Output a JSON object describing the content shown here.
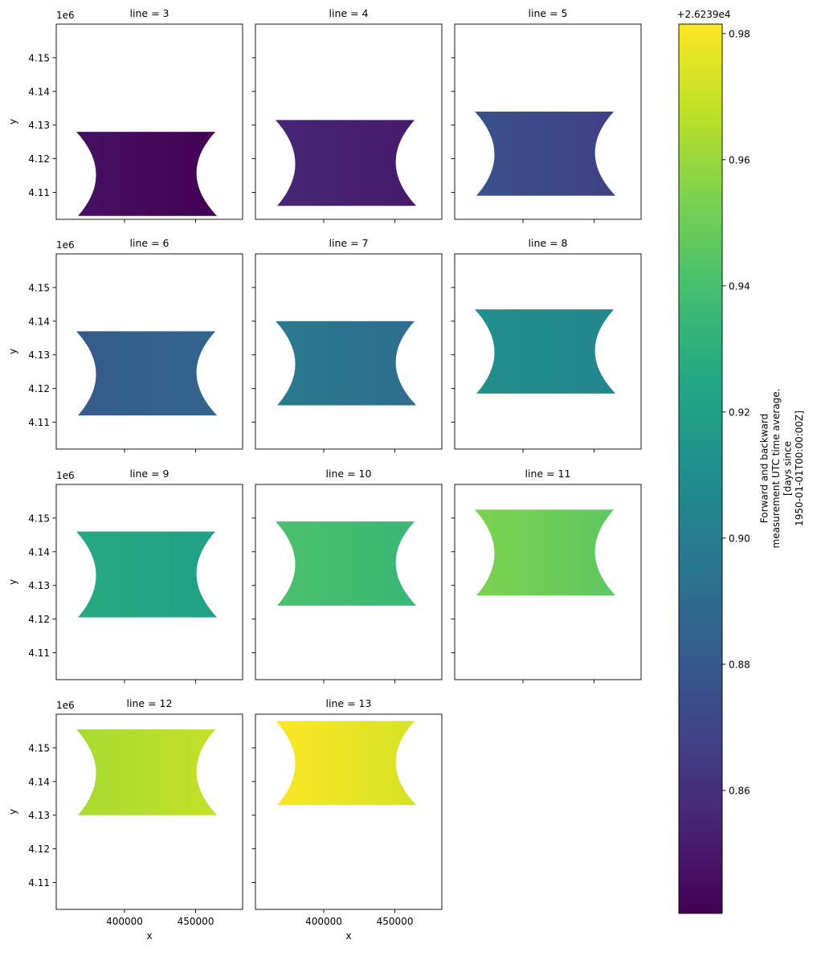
{
  "chart_data": {
    "type": "heatmap",
    "facet_var": "line",
    "panels": [
      {
        "line": 3,
        "title": "line = 3",
        "y_range": [
          4103000,
          4128000
        ],
        "value_left": 0.847,
        "value_right": 0.841
      },
      {
        "line": 4,
        "title": "line = 4",
        "y_range": [
          4106000,
          4131500
        ],
        "value_left": 0.856,
        "value_right": 0.851
      },
      {
        "line": 5,
        "title": "line = 5",
        "y_range": [
          4109000,
          4134000
        ],
        "value_left": 0.876,
        "value_right": 0.868
      },
      {
        "line": 6,
        "title": "line = 6",
        "y_range": [
          4112000,
          4137000
        ],
        "value_left": 0.881,
        "value_right": 0.886
      },
      {
        "line": 7,
        "title": "line = 7",
        "y_range": [
          4115000,
          4140000
        ],
        "value_left": 0.898,
        "value_right": 0.891
      },
      {
        "line": 8,
        "title": "line = 8",
        "y_range": [
          4118500,
          4143500
        ],
        "value_left": 0.911,
        "value_right": 0.905
      },
      {
        "line": 9,
        "title": "line = 9",
        "y_range": [
          4120500,
          4146000
        ],
        "value_left": 0.927,
        "value_right": 0.921
      },
      {
        "line": 10,
        "title": "line = 10",
        "y_range": [
          4124000,
          4149000
        ],
        "value_left": 0.941,
        "value_right": 0.935
      },
      {
        "line": 11,
        "title": "line = 11",
        "y_range": [
          4127000,
          4152500
        ],
        "value_left": 0.954,
        "value_right": 0.946
      },
      {
        "line": 12,
        "title": "line = 12",
        "y_range": [
          4130000,
          4155500
        ],
        "value_left": 0.963,
        "value_right": 0.969
      },
      {
        "line": 13,
        "title": "line = 13",
        "y_range": [
          4133000,
          4158000
        ],
        "value_left": 0.981,
        "value_right": 0.973
      }
    ],
    "x_range": [
      365000,
      465000
    ],
    "xlim": [
      352000,
      483000
    ],
    "ylim": [
      4102000,
      4160000
    ],
    "xlabel": "x",
    "ylabel": "y",
    "x_ticks": [
      400000,
      450000
    ],
    "x_tick_labels": [
      "400000",
      "450000"
    ],
    "y_ticks": [
      4110000,
      4120000,
      4130000,
      4140000,
      4150000
    ],
    "y_tick_labels": [
      "4.11",
      "4.12",
      "4.13",
      "4.14",
      "4.15"
    ],
    "y_offset_label": "1e6",
    "colorbar": {
      "vmin": 0.8405,
      "vmax": 0.9815,
      "ticks": [
        0.86,
        0.88,
        0.9,
        0.92,
        0.94,
        0.96,
        0.98
      ],
      "tick_labels": [
        "0.86",
        "0.88",
        "0.90",
        "0.92",
        "0.94",
        "0.96",
        "0.98"
      ],
      "offset_label": "+2.6239e4",
      "label_lines": [
        "Forward and backward",
        "measurement UTC time average.",
        "[days since",
        "1950-01-01T00:00:00Z]"
      ],
      "colormap": "viridis"
    },
    "grid": false
  }
}
